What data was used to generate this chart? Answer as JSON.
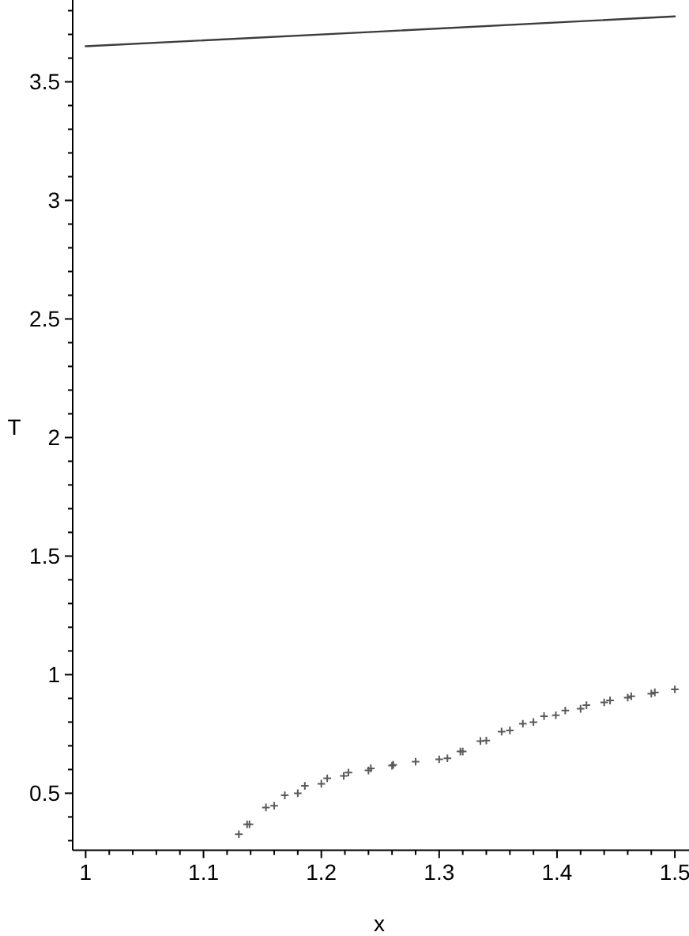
{
  "chart_data": {
    "type": "scatter",
    "xlabel": "x",
    "ylabel": "T",
    "xlim": [
      0.989,
      1.512
    ],
    "ylim": [
      0.26,
      3.845
    ],
    "xticks": [
      1,
      {
        "value": 1.02,
        "label": null
      },
      {
        "value": 1.04,
        "label": null
      },
      {
        "value": 1.06,
        "label": null
      },
      {
        "value": 1.08,
        "label": null
      },
      1.1,
      {
        "value": 1.12,
        "label": null
      },
      {
        "value": 1.14,
        "label": null
      },
      {
        "value": 1.16,
        "label": null
      },
      {
        "value": 1.18,
        "label": null
      },
      1.2,
      {
        "value": 1.22,
        "label": null
      },
      {
        "value": 1.24,
        "label": null
      },
      {
        "value": 1.26,
        "label": null
      },
      {
        "value": 1.28,
        "label": null
      },
      1.3,
      {
        "value": 1.32,
        "label": null
      },
      {
        "value": 1.34,
        "label": null
      },
      {
        "value": 1.36,
        "label": null
      },
      {
        "value": 1.38,
        "label": null
      },
      1.4,
      {
        "value": 1.42,
        "label": null
      },
      {
        "value": 1.44,
        "label": null
      },
      {
        "value": 1.46,
        "label": null
      },
      {
        "value": 1.48,
        "label": null
      },
      1.5
    ],
    "yticks": [
      {
        "value": 0.3,
        "label": null
      },
      {
        "value": 0.4,
        "label": null
      },
      0.5,
      {
        "value": 0.6,
        "label": null
      },
      {
        "value": 0.7,
        "label": null
      },
      {
        "value": 0.8,
        "label": null
      },
      {
        "value": 0.9,
        "label": null
      },
      1,
      {
        "value": 1.1,
        "label": null
      },
      {
        "value": 1.2,
        "label": null
      },
      {
        "value": 1.3,
        "label": null
      },
      {
        "value": 1.4,
        "label": null
      },
      1.5,
      {
        "value": 1.6,
        "label": null
      },
      {
        "value": 1.7,
        "label": null
      },
      {
        "value": 1.8,
        "label": null
      },
      {
        "value": 1.9,
        "label": null
      },
      2,
      {
        "value": 2.1,
        "label": null
      },
      {
        "value": 2.2,
        "label": null
      },
      {
        "value": 2.3,
        "label": null
      },
      {
        "value": 2.4,
        "label": null
      },
      2.5,
      {
        "value": 2.6,
        "label": null
      },
      {
        "value": 2.7,
        "label": null
      },
      {
        "value": 2.8,
        "label": null
      },
      {
        "value": 2.9,
        "label": null
      },
      3,
      {
        "value": 3.1,
        "label": null
      },
      {
        "value": 3.2,
        "label": null
      },
      {
        "value": 3.3,
        "label": null
      },
      {
        "value": 3.4,
        "label": null
      },
      3.5,
      {
        "value": 3.6,
        "label": null
      },
      {
        "value": 3.7,
        "label": null
      },
      {
        "value": 3.8,
        "label": null
      }
    ],
    "series": [
      {
        "type": "line",
        "color": "#3c3c3c",
        "line_style": "solid",
        "x": [
          1,
          1.25,
          1.5
        ],
        "values": [
          3.65,
          3.712,
          3.776
        ]
      },
      {
        "color": "#5a5a5a",
        "marker": "cross",
        "x": [
          1.13,
          1.137,
          1.139,
          1.153,
          1.16,
          1.169,
          1.18,
          1.186,
          1.2,
          1.205,
          1.219,
          1.223,
          1.24,
          1.242,
          1.26,
          1.261,
          1.28,
          1.3,
          1.307,
          1.318,
          1.32,
          1.335,
          1.34,
          1.353,
          1.36,
          1.371,
          1.38,
          1.389,
          1.399,
          1.407,
          1.42,
          1.425,
          1.44,
          1.445,
          1.46,
          1.463,
          1.48,
          1.483,
          1.5
        ],
        "values": [
          0.327,
          0.369,
          0.369,
          0.44,
          0.447,
          0.491,
          0.5,
          0.531,
          0.54,
          0.563,
          0.573,
          0.587,
          0.596,
          0.605,
          0.616,
          0.62,
          0.633,
          0.643,
          0.647,
          0.676,
          0.676,
          0.72,
          0.722,
          0.76,
          0.765,
          0.793,
          0.8,
          0.825,
          0.829,
          0.849,
          0.856,
          0.871,
          0.883,
          0.891,
          0.903,
          0.909,
          0.92,
          0.925,
          0.938
        ]
      }
    ]
  }
}
